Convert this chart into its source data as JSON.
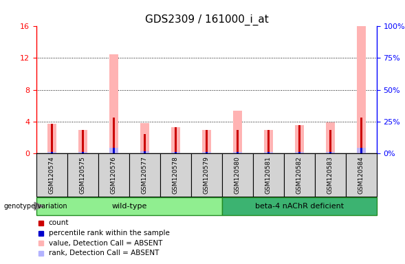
{
  "title": "GDS2309 / 161000_i_at",
  "samples": [
    "GSM120574",
    "GSM120575",
    "GSM120576",
    "GSM120577",
    "GSM120578",
    "GSM120579",
    "GSM120580",
    "GSM120581",
    "GSM120582",
    "GSM120583",
    "GSM120584"
  ],
  "red_values": [
    3.7,
    2.9,
    4.5,
    2.4,
    3.3,
    2.9,
    2.9,
    2.9,
    3.5,
    2.9,
    4.5
  ],
  "pink_values": [
    3.7,
    2.9,
    12.5,
    3.8,
    3.3,
    2.9,
    5.4,
    2.9,
    3.5,
    3.9,
    16.0
  ],
  "blue_values": [
    1.0,
    1.0,
    4.3,
    1.5,
    1.0,
    1.0,
    1.0,
    1.0,
    1.0,
    1.0,
    4.3
  ],
  "lblue_values": [
    1.0,
    1.0,
    4.3,
    1.5,
    1.0,
    1.0,
    1.0,
    1.0,
    1.0,
    1.0,
    4.3
  ],
  "ylim_left": [
    0,
    16
  ],
  "ylim_right": [
    0,
    100
  ],
  "yticks_left": [
    0,
    4,
    8,
    12,
    16
  ],
  "yticks_right": [
    0,
    25,
    50,
    75,
    100
  ],
  "group_labels": [
    "wild-type",
    "beta-4 nAChR deficient"
  ],
  "group_colors": [
    "#90EE90",
    "#3CB371"
  ],
  "bg_color": "#d3d3d3",
  "legend_items": [
    {
      "label": "count",
      "color": "#cc0000"
    },
    {
      "label": "percentile rank within the sample",
      "color": "#0000cc"
    },
    {
      "label": "value, Detection Call = ABSENT",
      "color": "#ffb3b3"
    },
    {
      "label": "rank, Detection Call = ABSENT",
      "color": "#b3b3ff"
    }
  ],
  "pink_bar_width": 0.28,
  "red_bar_width": 0.07,
  "red_color": "#cc0000",
  "pink_color": "#ffb3b3",
  "blue_color": "#0000cc",
  "lblue_color": "#b3b3ff",
  "title_fontsize": 11,
  "tick_fontsize": 8,
  "grid_dotted_at": [
    4,
    8,
    12
  ]
}
